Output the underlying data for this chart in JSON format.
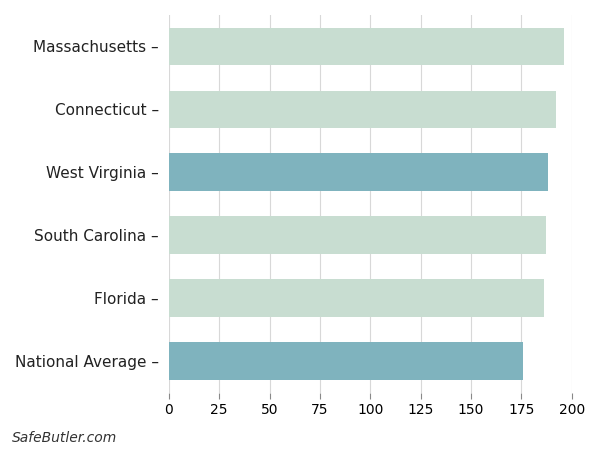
{
  "categories": [
    "Massachusetts",
    "Connecticut",
    "West Virginia",
    "South Carolina",
    "Florida",
    "National Average"
  ],
  "values": [
    196,
    192,
    188,
    187,
    186,
    176
  ],
  "bar_colors": [
    "#c8ddd1",
    "#c8ddd1",
    "#7fb3be",
    "#c8ddd1",
    "#c8ddd1",
    "#7fb3be"
  ],
  "xlim": [
    0,
    200
  ],
  "xticks": [
    0,
    25,
    50,
    75,
    100,
    125,
    150,
    175,
    200
  ],
  "background_color": "#ffffff",
  "plot_bg_color": "#ffffff",
  "grid_color": "#d8d8d8",
  "footer_text": "SafeButler.com",
  "footer_fontsize": 10,
  "label_suffix": " –",
  "bar_height": 0.6,
  "label_fontsize": 11,
  "tick_fontsize": 10
}
